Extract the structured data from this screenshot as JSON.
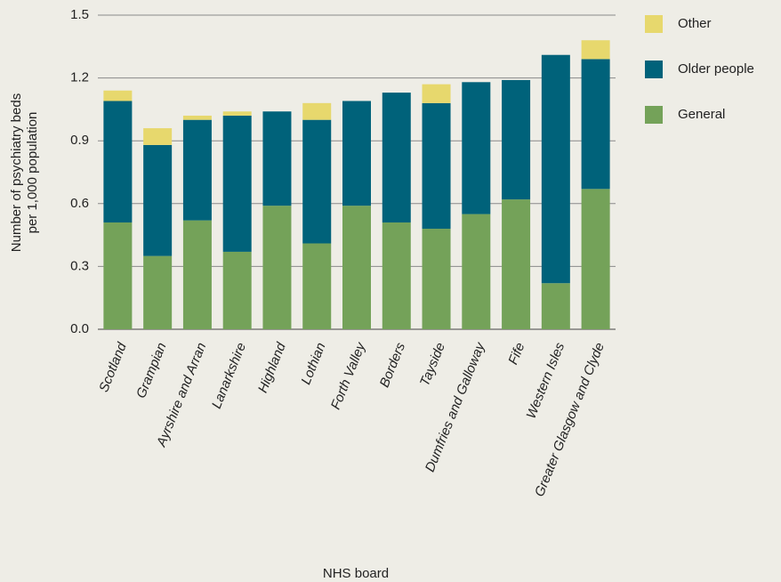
{
  "chart_data": {
    "type": "stacked_bar",
    "x_label": "NHS board",
    "y_label": [
      "Number of psychiatry beds",
      "per 1,000 population"
    ],
    "categories": [
      "Scotland",
      "Grampian",
      "Ayrshire and Arran",
      "Lanarkshire",
      "Highland",
      "Lothian",
      "Forth Valley",
      "Borders",
      "Tayside",
      "Dumfries and Galloway",
      "Fife",
      "Western Isles",
      "Greater Glasgow and Clyde"
    ],
    "series": [
      {
        "name": "General",
        "color": "#74a259",
        "values": [
          0.51,
          0.35,
          0.52,
          0.37,
          0.59,
          0.41,
          0.59,
          0.51,
          0.48,
          0.55,
          0.62,
          0.22,
          0.67
        ]
      },
      {
        "name": "Older people",
        "color": "#00627a",
        "values": [
          0.58,
          0.53,
          0.48,
          0.65,
          0.45,
          0.59,
          0.5,
          0.62,
          0.6,
          0.63,
          0.57,
          1.09,
          0.62
        ]
      },
      {
        "name": "Other",
        "color": "#e7d86d",
        "values": [
          0.05,
          0.08,
          0.02,
          0.02,
          0,
          0.08,
          0,
          0,
          0.09,
          0,
          0,
          0,
          0.09
        ]
      }
    ],
    "ylim": [
      0,
      1.5
    ],
    "yticks": [
      {
        "value": 0,
        "label": "0.0"
      },
      0.3,
      0.6,
      0.9,
      1.2,
      1.5
    ],
    "grid": true,
    "legend": "right"
  }
}
